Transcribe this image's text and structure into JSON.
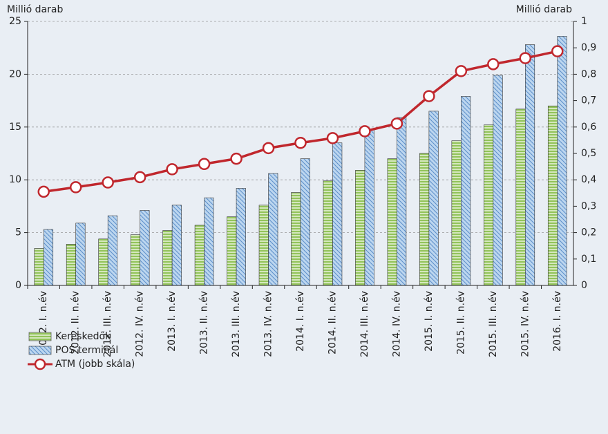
{
  "chart_data": {
    "type": "bar",
    "y_label": "Millió darab",
    "y2_label": "Millió darab",
    "categories": [
      "2012. I. n.év",
      "2012. II. n.év",
      "2012. III. n.év",
      "2012. IV. n.év",
      "2013. I. n.év",
      "2013. II. n.év",
      "2013. III. n.év",
      "2013. IV. n.év",
      "2014. I. n.év",
      "2014. II. n.év",
      "2014. III. n.év",
      "2014. IV. n.év",
      "2015. I. n.év",
      "2015. II. n.év",
      "2015. III. n.év",
      "2015. IV. n.év",
      "2016. I. n.év"
    ],
    "series": [
      {
        "name": "Kereskedők",
        "type": "bar",
        "color": "#92c35a",
        "values": [
          3.5,
          3.9,
          4.4,
          4.8,
          5.2,
          5.7,
          6.5,
          7.6,
          8.8,
          9.9,
          10.9,
          12.0,
          12.5,
          13.7,
          15.2,
          16.7,
          17.0
        ]
      },
      {
        "name": "POS terminál",
        "type": "bar",
        "color": "#bcd6ef",
        "values": [
          5.3,
          5.9,
          6.6,
          7.1,
          7.6,
          8.3,
          9.2,
          10.6,
          12.0,
          13.5,
          14.8,
          15.9,
          16.5,
          17.9,
          19.9,
          22.8,
          23.6
        ]
      },
      {
        "name": "ATM (jobb skála)",
        "type": "line",
        "axis": "y2",
        "color": "#c0272d",
        "values": [
          0.355,
          0.372,
          0.39,
          0.41,
          0.44,
          0.46,
          0.48,
          0.52,
          0.54,
          0.558,
          0.584,
          0.613,
          0.717,
          0.812,
          0.838,
          0.861,
          0.887
        ]
      }
    ],
    "ylim": [
      0,
      25
    ],
    "yticks": [
      0,
      5,
      10,
      15,
      20,
      25
    ],
    "y2lim": [
      0,
      1
    ],
    "y2ticks": [
      0,
      {
        "value": 0.1,
        "label": "0,1"
      },
      {
        "value": 0.2,
        "label": "0,2"
      },
      {
        "value": 0.3,
        "label": "0,3"
      },
      {
        "value": 0.4,
        "label": "0,4"
      },
      {
        "value": 0.5,
        "label": "0,5"
      },
      {
        "value": 0.6,
        "label": "0,6"
      },
      {
        "value": 0.7,
        "label": "0,7"
      },
      {
        "value": 0.8,
        "label": "0,8"
      },
      {
        "value": 0.9,
        "label": "0,9"
      },
      1
    ],
    "grid": true
  }
}
